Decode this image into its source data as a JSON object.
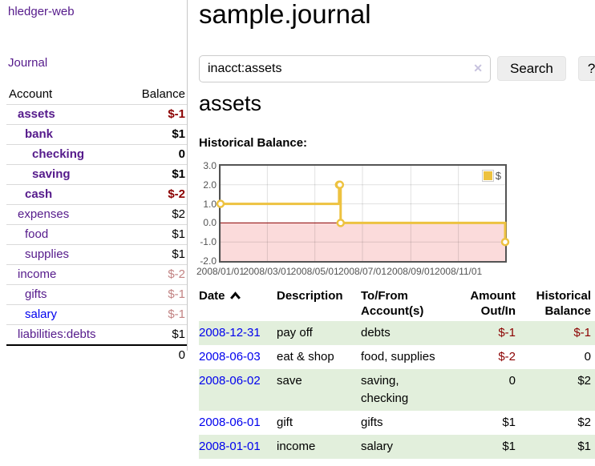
{
  "sidebar": {
    "brand": "hledger-web",
    "journal_link": "Journal",
    "accounts": {
      "headers": {
        "account": "Account",
        "balance": "Balance"
      },
      "rows": [
        {
          "name": "assets",
          "balance": "$-1",
          "style": "depth-1 bold",
          "balance_tone": "neg-strong",
          "link_tone": "visited"
        },
        {
          "name": "bank",
          "balance": "$1",
          "style": "depth-2 bold",
          "balance_tone": "",
          "link_tone": "visited"
        },
        {
          "name": "checking",
          "balance": "0",
          "style": "depth-3 bold",
          "balance_tone": "",
          "link_tone": "visited"
        },
        {
          "name": "saving",
          "balance": "$1",
          "style": "depth-3 bold",
          "balance_tone": "",
          "link_tone": "visited"
        },
        {
          "name": "cash",
          "balance": "$-2",
          "style": "depth-2 bold",
          "balance_tone": "neg-strong",
          "link_tone": "visited"
        },
        {
          "name": "expenses",
          "balance": "$2",
          "style": "depth-1",
          "balance_tone": "",
          "link_tone": "visited"
        },
        {
          "name": "food",
          "balance": "$1",
          "style": "depth-2",
          "balance_tone": "",
          "link_tone": "visited"
        },
        {
          "name": "supplies",
          "balance": "$1",
          "style": "depth-2",
          "balance_tone": "",
          "link_tone": "visited"
        },
        {
          "name": "income",
          "balance": "$-2",
          "style": "depth-1",
          "balance_tone": "neg-soft",
          "link_tone": "visited"
        },
        {
          "name": "gifts",
          "balance": "$-1",
          "style": "depth-2",
          "balance_tone": "neg-soft",
          "link_tone": "visited"
        },
        {
          "name": "salary",
          "balance": "$-1",
          "style": "depth-2",
          "balance_tone": "neg-soft",
          "link_tone": "unvisited"
        },
        {
          "name": "liabilities:debts",
          "balance": "$1",
          "style": "depth-1",
          "balance_tone": "",
          "link_tone": "visited"
        }
      ],
      "total": "0"
    }
  },
  "header": {
    "title": "sample.journal"
  },
  "search": {
    "value": "inacct:assets",
    "clear_icon": "✕",
    "button_label": "Search",
    "help_label": "?"
  },
  "account_page": {
    "heading": "assets",
    "chart_label": "Historical Balance:"
  },
  "chart_data": {
    "type": "line",
    "title": "Historical Balance",
    "series": [
      {
        "name": "$",
        "color": "#edc240",
        "steps": true,
        "points": [
          [
            "2008-01-01",
            1
          ],
          [
            "2008-06-01",
            2
          ],
          [
            "2008-06-02",
            2
          ],
          [
            "2008-06-03",
            0
          ],
          [
            "2008-12-31",
            -1
          ]
        ]
      }
    ],
    "xlim": [
      "2008-01-01",
      "2008-12-31"
    ],
    "ylim": [
      -2,
      3
    ],
    "x_ticks": [
      {
        "date": "2008-01-01",
        "label": "2008/01/01"
      },
      {
        "date": "2008-03-01",
        "label": "2008/03/01"
      },
      {
        "date": "2008-05-01",
        "label": "2008/05/01"
      },
      {
        "date": "2008-07-01",
        "label": "2008/07/01"
      },
      {
        "date": "2008-09-01",
        "label": "2008/09/01"
      },
      {
        "date": "2008-11-01",
        "label": "2008/11/01"
      }
    ],
    "y_ticks": [
      {
        "v": 3,
        "label": "3.0"
      },
      {
        "v": 2,
        "label": "2.0"
      },
      {
        "v": 1,
        "label": "1.0"
      },
      {
        "v": 0,
        "label": "0.0"
      },
      {
        "v": -1,
        "label": "-1.0"
      },
      {
        "v": -2,
        "label": "-2.0"
      }
    ],
    "legend": {
      "label": "$",
      "position": "top-right"
    },
    "grid": true,
    "negative_region_color": "#fbdbdb",
    "zero_line_color": "#8b0000",
    "marker": {
      "fill": "#ffffff",
      "radius": 4
    }
  },
  "register": {
    "headers": [
      {
        "line1": "Date",
        "sort": "ascending"
      },
      {
        "line1": "Description"
      },
      {
        "line1": "To/From",
        "line2": "Account(s)"
      },
      {
        "line1": "Amount",
        "line2": "Out/In"
      },
      {
        "line1": "Historical",
        "line2": "Balance"
      }
    ],
    "rows": [
      {
        "date": "2008-12-31",
        "description": "pay off",
        "accounts_lines": [
          "debts"
        ],
        "amount": "$-1",
        "amount_tone": "neg",
        "balance": "$-1",
        "balance_tone": "neg",
        "row_tone": "shaded"
      },
      {
        "date": "2008-06-03",
        "description": "eat & shop",
        "accounts_lines": [
          "food, supplies"
        ],
        "amount": "$-2",
        "amount_tone": "neg",
        "balance": "0",
        "balance_tone": "",
        "row_tone": ""
      },
      {
        "date": "2008-06-02",
        "description": "save",
        "accounts_lines": [
          "saving,",
          "checking"
        ],
        "amount": "0",
        "amount_tone": "",
        "balance": "$2",
        "balance_tone": "",
        "row_tone": "shaded"
      },
      {
        "date": "2008-06-01",
        "description": "gift",
        "accounts_lines": [
          "gifts"
        ],
        "amount": "$1",
        "amount_tone": "",
        "balance": "$2",
        "balance_tone": "",
        "row_tone": ""
      },
      {
        "date": "2008-01-01",
        "description": "income",
        "accounts_lines": [
          "salary"
        ],
        "amount": "$1",
        "amount_tone": "",
        "balance": "$1",
        "balance_tone": "",
        "row_tone": "shaded"
      }
    ]
  }
}
